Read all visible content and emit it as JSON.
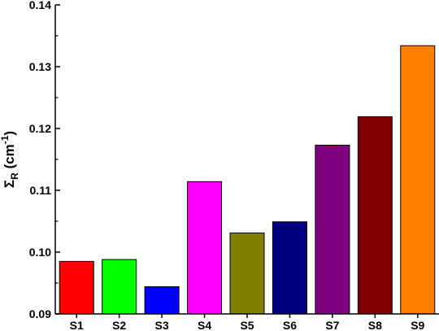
{
  "chart_data": {
    "type": "bar",
    "title": "",
    "xlabel": "",
    "ylabel": {
      "symbol": "Σ",
      "subscript": "R",
      "unit_prefix": " (cm",
      "unit_exp": "-1",
      "unit_suffix": ")"
    },
    "categories": [
      "S1",
      "S2",
      "S3",
      "S4",
      "S5",
      "S6",
      "S7",
      "S8",
      "S9"
    ],
    "values": [
      0.0985,
      0.0988,
      0.0944,
      0.1114,
      0.1031,
      0.1049,
      0.1173,
      0.1219,
      0.1334
    ],
    "colors": [
      "#ff0000",
      "#00ff00",
      "#0000ff",
      "#ff00ff",
      "#808000",
      "#000080",
      "#800080",
      "#800000",
      "#ff8000"
    ],
    "ylim": [
      0.09,
      0.14
    ],
    "yticks": [
      0.09,
      0.1,
      0.11,
      0.12,
      0.13,
      0.14
    ],
    "ytick_labels": [
      "0.09",
      "0.10",
      "0.11",
      "0.12",
      "0.13",
      "0.14"
    ],
    "grid": false,
    "legend": "none"
  }
}
